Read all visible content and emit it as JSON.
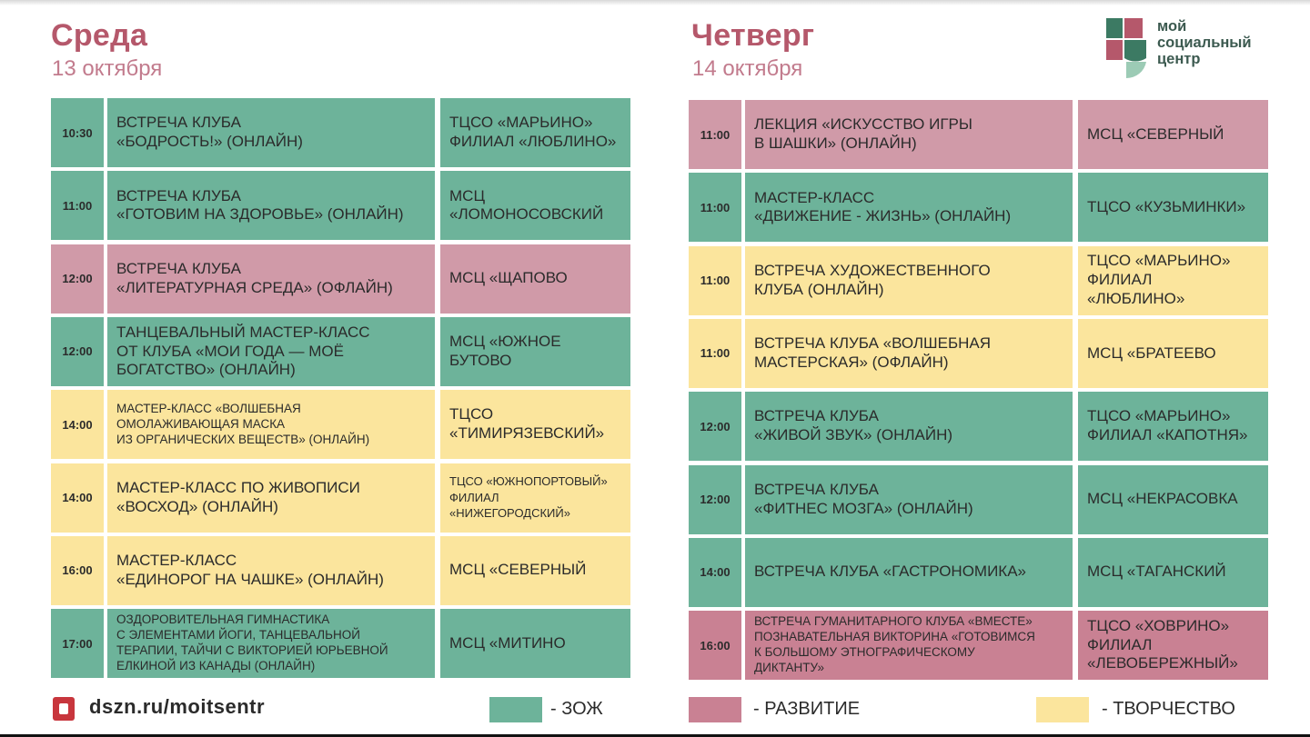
{
  "left": {
    "day": "Среда",
    "date": "13 октября",
    "rows": [
      {
        "time": "10:30",
        "event": "ВСТРЕЧА КЛУБА\n«БОДРОСТЬ!» (ОНЛАЙН)",
        "place": "ТЦСО «МАРЬИНО»\nФИЛИАЛ «ЛЮБЛИНО»",
        "category": "zoj"
      },
      {
        "time": "11:00",
        "event": "ВСТРЕЧА КЛУБА\n«ГОТОВИМ НА ЗДОРОВЬЕ» (ОНЛАЙН)",
        "place": "МСЦ\n«ЛОМОНОСОВСКИЙ",
        "category": "zoj"
      },
      {
        "time": "12:00",
        "event": "ВСТРЕЧА КЛУБА\n«ЛИТЕРАТУРНАЯ СРЕДА» (ОФЛАЙН)",
        "place": "МСЦ «ЩАПОВО",
        "category": "razv"
      },
      {
        "time": "12:00",
        "event": "ТАНЦЕВАЛЬНЫЙ МАСТЕР-КЛАСС\nОТ КЛУБА «МОИ ГОДА — МОЁ\nБОГАТСТВО» (ОНЛАЙН)",
        "place": "МСЦ «ЮЖНОЕ\nБУТОВО",
        "category": "zoj"
      },
      {
        "time": "14:00",
        "event": "МАСТЕР-КЛАСС «ВОЛШЕБНАЯ\nОМОЛАЖИВАЮЩАЯ МАСКА\nИЗ ОРГАНИЧЕСКИХ ВЕЩЕСТВ» (ОНЛАЙН)",
        "place": "ТЦСО\n«ТИМИРЯЗЕВСКИЙ»",
        "category": "tvor",
        "event_small": true
      },
      {
        "time": "14:00",
        "event": "МАСТЕР-КЛАСС ПО ЖИВОПИСИ\n«ВОСХОД» (ОНЛАЙН)",
        "place": "ТЦСО «ЮЖНОПОРТОВЫЙ»\nФИЛИАЛ\n«НИЖЕГОРОДСКИЙ»",
        "category": "tvor",
        "place_small": true
      },
      {
        "time": "16:00",
        "event": "МАСТЕР-КЛАСС\n«ЕДИНОРОГ НА ЧАШКЕ» (ОНЛАЙН)",
        "place": "МСЦ «СЕВЕРНЫЙ",
        "category": "tvor"
      },
      {
        "time": "17:00",
        "event": "ОЗДОРОВИТЕЛЬНАЯ ГИМНАСТИКА\nС ЭЛЕМЕНТАМИ ЙОГИ, ТАНЦЕВАЛЬНОЙ\nТЕРАПИИ, ТАЙЧИ С ВИКТОРИЕЙ ЮРЬЕВНОЙ\nЕЛКИНОЙ ИЗ КАНАДЫ (ОНЛАЙН)",
        "place": "МСЦ «МИТИНО",
        "category": "zoj",
        "event_small": true
      }
    ]
  },
  "right": {
    "day": "Четверг",
    "date": "14 октября",
    "rows": [
      {
        "time": "11:00",
        "event": "ЛЕКЦИЯ «ИСКУССТВО ИГРЫ\nВ ШАШКИ» (ОНЛАЙН)",
        "place": "МСЦ «СЕВЕРНЫЙ",
        "category": "razv"
      },
      {
        "time": "11:00",
        "event": "МАСТЕР-КЛАСС\n«ДВИЖЕНИЕ - ЖИЗНЬ» (ОНЛАЙН)",
        "place": "ТЦСО «КУЗЬМИНКИ»",
        "category": "zoj"
      },
      {
        "time": "11:00",
        "event": "ВСТРЕЧА ХУДОЖЕСТВЕННОГО\nКЛУБА (ОНЛАЙН)",
        "place": "ТЦСО «МАРЬИНО»\nФИЛИАЛ\n«ЛЮБЛИНО»",
        "category": "tvor"
      },
      {
        "time": "11:00",
        "event": "ВСТРЕЧА КЛУБА «ВОЛШЕБНАЯ\nМАСТЕРСКАЯ» (ОФЛАЙН)",
        "place": "МСЦ «БРАТЕЕВО",
        "category": "tvor"
      },
      {
        "time": "12:00",
        "event": "ВСТРЕЧА КЛУБА\n«ЖИВОЙ ЗВУК» (ОНЛАЙН)",
        "place": "ТЦСО «МАРЬИНО»\nФИЛИАЛ «КАПОТНЯ»",
        "category": "zoj"
      },
      {
        "time": "12:00",
        "event": "ВСТРЕЧА КЛУБА\n«ФИТНЕС МОЗГА» (ОНЛАЙН)",
        "place": "МСЦ «НЕКРАСОВКА",
        "category": "zoj"
      },
      {
        "time": "14:00",
        "event": "ВСТРЕЧА КЛУБА «ГАСТРОНОМИКА»",
        "place": "МСЦ «ТАГАНСКИЙ",
        "category": "zoj"
      },
      {
        "time": "16:00",
        "event": "ВСТРЕЧА ГУМАНИТАРНОГО КЛУБА «ВМЕСТЕ»\nПОЗНАВАТЕЛЬНАЯ ВИКТОРИНА «ГОТОВИМСЯ\nК БОЛЬШОМУ ЭТНОГРАФИЧЕСКОМУ\nДИКТАНТУ»",
        "place": "ТЦСО «ХОВРИНО»\nФИЛИАЛ\n«ЛЕВОБЕРЕЖНЫЙ»",
        "category": "razv2",
        "event_small": true
      }
    ]
  },
  "logo": {
    "text": "мой\nсоциальный\nцентр"
  },
  "footer": {
    "url": "dszn.ru/moitsentr"
  },
  "legend": [
    {
      "label": "- ЗОЖ",
      "color": "#6db39a"
    },
    {
      "label": "- РАЗВИТИЕ",
      "color": "#c98193"
    },
    {
      "label": "- ТВОРЧЕСТВО",
      "color": "#fbe59d"
    }
  ],
  "colors": {
    "zoj": "#6db39a",
    "razv": "#d09aa8",
    "razv2": "#c98193",
    "tvor": "#fbe59d",
    "title": "#b5586b",
    "date": "#c27b8d"
  }
}
